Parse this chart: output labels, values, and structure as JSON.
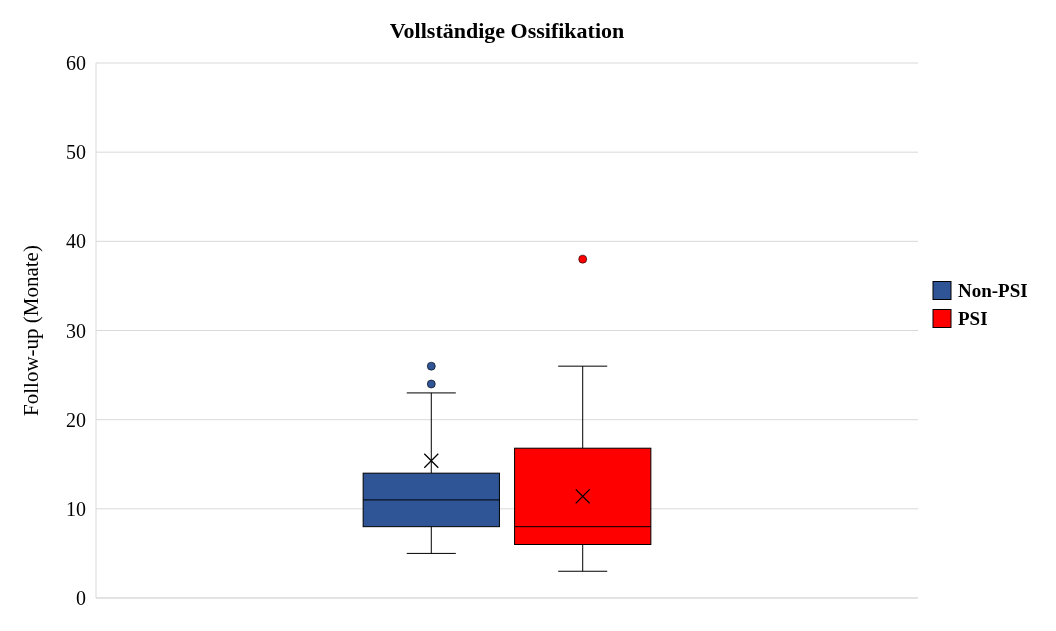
{
  "chart_data": {
    "type": "box",
    "title": "Vollständige Ossifikation",
    "ylabel": "Follow-up (Monate)",
    "categories": [
      null
    ],
    "ylim": [
      0,
      60
    ],
    "yticks": [
      0,
      10,
      20,
      30,
      40,
      50,
      60
    ],
    "grid": "y",
    "legend": "right",
    "series": [
      {
        "name": "Non-PSI",
        "color": "#2f5597",
        "boxes": [
          {
            "low": 5,
            "q1": 8,
            "median": 11,
            "q3": 14,
            "high": 23,
            "mean": 15.4,
            "outliers": [
              24,
              26
            ]
          }
        ]
      },
      {
        "name": "PSI",
        "color": "#ff0000",
        "boxes": [
          {
            "low": 3,
            "q1": 6,
            "median": 8,
            "q3": 16.8,
            "high": 26,
            "mean": 11.4,
            "outliers": [
              38
            ]
          }
        ]
      }
    ]
  }
}
